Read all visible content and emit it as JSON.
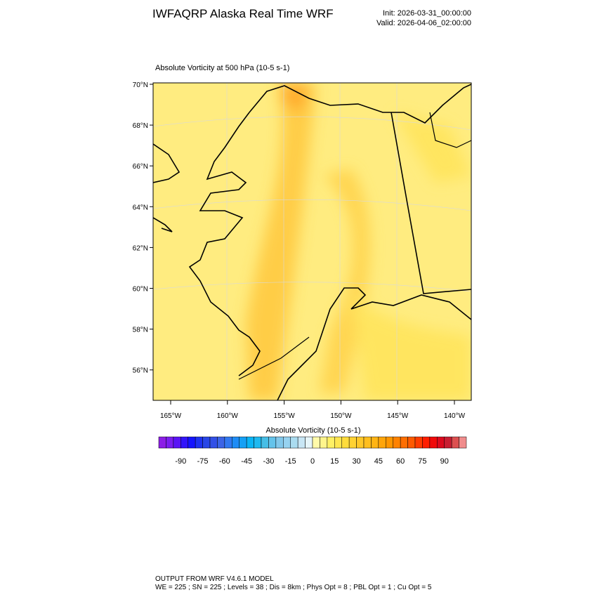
{
  "header": {
    "title": "IWFAQRP Alaska Real Time WRF",
    "init": "Init: 2026-03-31_00:00:00",
    "valid": "Valid: 2026-04-06_02:00:00"
  },
  "map": {
    "subtitle": "Absolute Vorticity at 500 hPa   (10-5 s-1)",
    "lat_labels": [
      "70°N",
      "68°N",
      "66°N",
      "64°N",
      "62°N",
      "60°N",
      "58°N",
      "56°N"
    ],
    "lon_labels": [
      "165°W",
      "160°W",
      "155°W",
      "150°W",
      "145°W",
      "140°W"
    ]
  },
  "colorbar": {
    "label": "Absolute Vorticity  (10-5 s-1)",
    "lim": [
      -105,
      105
    ],
    "ticks": [
      -90,
      -75,
      -60,
      -45,
      -30,
      -15,
      0,
      15,
      30,
      45,
      60,
      75,
      90
    ],
    "colors": [
      "#8c1ee6",
      "#7a1ef0",
      "#5a14f5",
      "#3214fa",
      "#1414ff",
      "#1e32f0",
      "#2846e6",
      "#3250e6",
      "#3c64e6",
      "#3278f0",
      "#1e8cf5",
      "#14a0f5",
      "#0ab4f5",
      "#1eb9f0",
      "#46bee6",
      "#64c3eb",
      "#82c8eb",
      "#96d2f0",
      "#aadcf0",
      "#c8e6f5",
      "#e6f5fa",
      "#fffaaa",
      "#fff58c",
      "#fff064",
      "#ffe650",
      "#ffdc3c",
      "#ffd232",
      "#ffc828",
      "#ffbe1e",
      "#ffb414",
      "#ffa50a",
      "#ff9600",
      "#ff8200",
      "#ff6e00",
      "#ff5a00",
      "#ff3c00",
      "#ff1e00",
      "#f00a0a",
      "#dc0a1e",
      "#c81e32",
      "#dc5050",
      "#f08c8c"
    ]
  },
  "footer": {
    "line1": "OUTPUT FROM WRF V4.6.1 MODEL",
    "line2": "WE = 225 ; SN = 225 ; Levels = 38 ; Dis = 8km ; Phys Opt = 8 ; PBL Opt = 1 ; Cu Opt = 5"
  }
}
